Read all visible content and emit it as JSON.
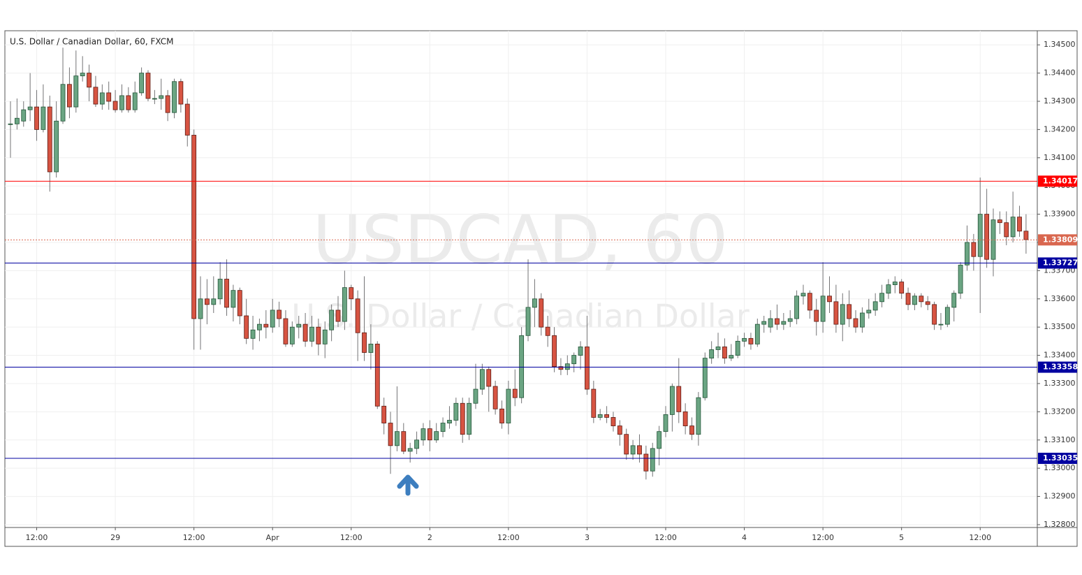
{
  "chart_data": {
    "type": "candlestick",
    "title": "U.S. Dollar / Canadian Dollar, 60, FXCM",
    "watermark": "USDCAD, 60",
    "watermark_subtitle": "U.S. Dollar / Canadian Dollar",
    "categories": [
      null,
      null,
      null,
      null,
      "12:00",
      null,
      null,
      null,
      null,
      null,
      null,
      null,
      null,
      null,
      null,
      null,
      "29",
      null,
      null,
      null,
      null,
      null,
      null,
      null,
      null,
      null,
      null,
      null,
      "12:00",
      null,
      null,
      null,
      null,
      null,
      null,
      null,
      null,
      null,
      null,
      null,
      "Apr",
      null,
      null,
      null,
      null,
      null,
      null,
      null,
      null,
      null,
      null,
      null,
      "12:00",
      null,
      null,
      null,
      null,
      null,
      null,
      null,
      null,
      null,
      null,
      null,
      "2",
      null,
      null,
      null,
      null,
      null,
      null,
      null,
      null,
      null,
      null,
      null,
      "12:00",
      null,
      null,
      null,
      null,
      null,
      null,
      null,
      null,
      null,
      null,
      null,
      "3",
      null,
      null,
      null,
      null,
      null,
      null,
      null,
      null,
      null,
      null,
      null,
      "12:00",
      null,
      null,
      null,
      null,
      null,
      null,
      null,
      null,
      null,
      null,
      null,
      "4",
      null,
      null,
      null,
      null,
      null,
      null,
      null,
      null,
      null,
      null,
      null,
      "12:00",
      null,
      null,
      null,
      null,
      null,
      null,
      null,
      null,
      null,
      null,
      null,
      "5",
      null,
      null,
      null,
      null,
      null,
      null,
      null,
      null,
      null,
      null,
      null,
      "12:00",
      null,
      null,
      null,
      null,
      null,
      null,
      null
    ],
    "open": [
      1.3422,
      1.3422,
      1.3423,
      1.3427,
      1.3428,
      1.342,
      1.3428,
      1.3405,
      1.3423,
      1.3436,
      1.3428,
      1.3439,
      1.344,
      1.3435,
      1.3429,
      1.3433,
      1.343,
      1.3427,
      1.3432,
      1.3427,
      1.3433,
      1.344,
      1.3431,
      1.3431,
      1.3432,
      1.3426,
      1.3437,
      1.3429,
      1.3418,
      1.3353,
      1.336,
      1.3358,
      1.336,
      1.3367,
      1.3357,
      1.3363,
      1.3354,
      1.3346,
      1.3349,
      1.3351,
      1.335,
      1.3356,
      1.3353,
      1.3344,
      1.335,
      1.3351,
      1.3345,
      1.335,
      1.3344,
      1.3349,
      1.3356,
      1.3352,
      1.3364,
      1.336,
      1.3348,
      1.3341,
      1.3344,
      1.3322,
      1.3316,
      1.3308,
      1.3313,
      1.3306,
      1.3307,
      1.331,
      1.3314,
      1.331,
      1.3313,
      1.3316,
      1.3317,
      1.3323,
      1.3312,
      1.3323,
      1.3328,
      1.3335,
      1.3329,
      1.3321,
      1.3316,
      1.3328,
      1.3325,
      1.3347,
      1.3357,
      1.336,
      1.335,
      1.3347,
      1.3336,
      1.3335,
      1.3337,
      1.334,
      1.3343,
      1.3328,
      1.3318,
      1.3319,
      1.3318,
      1.3315,
      1.3312,
      1.3305,
      1.3308,
      1.3305,
      1.3299,
      1.3307,
      1.3313,
      1.3319,
      1.3329,
      1.332,
      1.3315,
      1.3312,
      1.3325,
      1.3339,
      1.3342,
      1.3343,
      1.3339,
      1.334,
      1.3345,
      1.3346,
      1.3344,
      1.3351,
      1.335,
      1.3353,
      1.3351,
      1.3352,
      1.3353,
      1.3361,
      1.3362,
      1.3356,
      1.3352,
      1.3361,
      1.3359,
      1.3351,
      1.3358,
      1.3353,
      1.335,
      1.3355,
      1.3356,
      1.3359,
      1.3362,
      1.3365,
      1.3366,
      1.3362,
      1.3358,
      1.3361,
      1.3359,
      1.3358,
      1.3351,
      1.3351,
      1.3357,
      1.3362,
      1.3372,
      1.338,
      1.3375,
      1.339,
      1.3374,
      1.3388,
      1.3387,
      1.3382,
      1.3389,
      1.3384
    ],
    "high": [
      1.343,
      1.3431,
      1.343,
      1.344,
      1.3434,
      1.3436,
      1.3432,
      1.343,
      1.3449,
      1.3442,
      1.3448,
      1.3446,
      1.3443,
      1.3439,
      1.3436,
      1.3437,
      1.3434,
      1.3436,
      1.3435,
      1.3437,
      1.3442,
      1.3441,
      1.3434,
      1.3438,
      1.3434,
      1.3438,
      1.3438,
      1.3431,
      1.342,
      1.3368,
      1.3367,
      1.3368,
      1.3373,
      1.3374,
      1.3365,
      1.3364,
      1.336,
      1.3354,
      1.3353,
      1.3356,
      1.336,
      1.3359,
      1.3356,
      1.3352,
      1.3354,
      1.3355,
      1.3354,
      1.3353,
      1.3352,
      1.3358,
      1.3361,
      1.337,
      1.3365,
      1.3363,
      1.3368,
      1.3351,
      1.3345,
      1.3325,
      1.332,
      1.3329,
      1.3316,
      1.3309,
      1.3313,
      1.3316,
      1.3317,
      1.3316,
      1.3318,
      1.3322,
      1.3325,
      1.3325,
      1.3325,
      1.3337,
      1.3337,
      1.3336,
      1.3331,
      1.3324,
      1.3331,
      1.3335,
      1.335,
      1.3374,
      1.3367,
      1.3362,
      1.3354,
      1.335,
      1.3339,
      1.334,
      1.3341,
      1.3345,
      1.3354,
      1.3331,
      1.3321,
      1.3322,
      1.332,
      1.3317,
      1.3314,
      1.331,
      1.3312,
      1.3308,
      1.3309,
      1.3315,
      1.3322,
      1.333,
      1.3339,
      1.3323,
      1.3318,
      1.3327,
      1.3341,
      1.3345,
      1.3348,
      1.3346,
      1.3344,
      1.3347,
      1.3348,
      1.3348,
      1.3353,
      1.3354,
      1.3356,
      1.3358,
      1.3355,
      1.3356,
      1.3363,
      1.3365,
      1.3363,
      1.336,
      1.3373,
      1.3368,
      1.3365,
      1.3362,
      1.3363,
      1.3356,
      1.3357,
      1.336,
      1.3362,
      1.3365,
      1.3367,
      1.3368,
      1.3367,
      1.3364,
      1.3362,
      1.3362,
      1.3361,
      1.3359,
      1.3355,
      1.3358,
      1.3363,
      1.3373,
      1.3386,
      1.3383,
      1.3403,
      1.3399,
      1.3392,
      1.3391,
      1.3391,
      1.3398,
      1.3393,
      1.339
    ],
    "low": [
      1.341,
      1.342,
      1.3421,
      1.3423,
      1.3416,
      1.3419,
      1.3398,
      1.3403,
      1.3422,
      1.3424,
      1.3426,
      1.3437,
      1.343,
      1.3428,
      1.3427,
      1.3427,
      1.3426,
      1.3426,
      1.3426,
      1.3426,
      1.3432,
      1.343,
      1.3429,
      1.3427,
      1.3423,
      1.3424,
      1.3426,
      1.3414,
      1.3342,
      1.3342,
      1.3351,
      1.3355,
      1.3358,
      1.3354,
      1.3352,
      1.3351,
      1.3344,
      1.3342,
      1.3345,
      1.3346,
      1.3348,
      1.335,
      1.3343,
      1.3343,
      1.3346,
      1.3343,
      1.3343,
      1.334,
      1.3339,
      1.3345,
      1.335,
      1.3349,
      1.3356,
      1.3338,
      1.3338,
      1.3335,
      1.3321,
      1.3312,
      1.3298,
      1.3306,
      1.3305,
      1.3302,
      1.3305,
      1.3308,
      1.3306,
      1.3309,
      1.3311,
      1.3314,
      1.3315,
      1.3309,
      1.331,
      1.3321,
      1.3326,
      1.332,
      1.3319,
      1.3314,
      1.3312,
      1.3322,
      1.3323,
      1.3345,
      1.335,
      1.3347,
      1.3343,
      1.3334,
      1.3333,
      1.3333,
      1.3334,
      1.3335,
      1.3326,
      1.3316,
      1.3317,
      1.3316,
      1.3313,
      1.3308,
      1.3303,
      1.3303,
      1.3302,
      1.3296,
      1.3297,
      1.3301,
      1.3311,
      1.3313,
      1.3316,
      1.3312,
      1.331,
      1.3308,
      1.3324,
      1.3337,
      1.3339,
      1.3337,
      1.3338,
      1.3339,
      1.3343,
      1.3342,
      1.3343,
      1.3348,
      1.3348,
      1.3349,
      1.3349,
      1.335,
      1.3351,
      1.3358,
      1.3353,
      1.3347,
      1.3348,
      1.3355,
      1.3348,
      1.3345,
      1.335,
      1.3348,
      1.3348,
      1.3353,
      1.3354,
      1.3357,
      1.336,
      1.3362,
      1.336,
      1.3356,
      1.3356,
      1.3357,
      1.3356,
      1.3349,
      1.3349,
      1.335,
      1.3352,
      1.336,
      1.337,
      1.337,
      1.3355,
      1.3371,
      1.3368,
      1.3383,
      1.3379,
      1.338,
      1.3382,
      1.3376
    ],
    "close": [
      1.3422,
      1.3424,
      1.3427,
      1.3428,
      1.342,
      1.3428,
      1.3405,
      1.3423,
      1.3436,
      1.3428,
      1.3439,
      1.344,
      1.3435,
      1.3429,
      1.3433,
      1.343,
      1.3427,
      1.3432,
      1.3427,
      1.3433,
      1.344,
      1.3431,
      1.3431,
      1.3432,
      1.3426,
      1.3437,
      1.3429,
      1.3418,
      1.3353,
      1.336,
      1.3358,
      1.336,
      1.3367,
      1.3357,
      1.3363,
      1.3354,
      1.3346,
      1.3349,
      1.3351,
      1.335,
      1.3356,
      1.3353,
      1.3344,
      1.335,
      1.3351,
      1.3345,
      1.335,
      1.3344,
      1.3349,
      1.3356,
      1.3352,
      1.3364,
      1.336,
      1.3348,
      1.3341,
      1.3344,
      1.3322,
      1.3316,
      1.3308,
      1.3313,
      1.3306,
      1.3307,
      1.331,
      1.3314,
      1.331,
      1.3313,
      1.3316,
      1.3317,
      1.3323,
      1.3312,
      1.3323,
      1.3328,
      1.3335,
      1.3329,
      1.3321,
      1.3316,
      1.3328,
      1.3325,
      1.3347,
      1.3357,
      1.336,
      1.335,
      1.3347,
      1.3336,
      1.3335,
      1.3337,
      1.334,
      1.3343,
      1.3328,
      1.3318,
      1.3319,
      1.3318,
      1.3315,
      1.3312,
      1.3305,
      1.3308,
      1.3305,
      1.3299,
      1.3307,
      1.3313,
      1.3319,
      1.3329,
      1.332,
      1.3315,
      1.3312,
      1.3325,
      1.3339,
      1.3342,
      1.3343,
      1.3339,
      1.334,
      1.3345,
      1.3346,
      1.3344,
      1.3351,
      1.3352,
      1.3353,
      1.3351,
      1.3352,
      1.3353,
      1.3361,
      1.3362,
      1.3356,
      1.3352,
      1.3361,
      1.3359,
      1.3351,
      1.3358,
      1.3353,
      1.335,
      1.3355,
      1.3356,
      1.3359,
      1.3362,
      1.3365,
      1.3366,
      1.3362,
      1.3358,
      1.3361,
      1.3359,
      1.3358,
      1.3351,
      1.3351,
      1.3357,
      1.3362,
      1.3372,
      1.338,
      1.3375,
      1.339,
      1.3374,
      1.3388,
      1.3387,
      1.3382,
      1.3389,
      1.3384,
      1.3381
    ],
    "up_color": "#6ba583",
    "down_color": "#d75442",
    "ylim": [
      1.3279,
      1.3455
    ],
    "yticks": [
      {
        "value": 1.328,
        "label": "1.32800"
      },
      {
        "value": 1.329,
        "label": "1.32900"
      },
      {
        "value": 1.33,
        "label": "1.33000"
      },
      {
        "value": 1.331,
        "label": "1.33100"
      },
      {
        "value": 1.332,
        "label": "1.33200"
      },
      {
        "value": 1.333,
        "label": "1.33300"
      },
      {
        "value": 1.334,
        "label": "1.33400"
      },
      {
        "value": 1.335,
        "label": "1.33500"
      },
      {
        "value": 1.336,
        "label": "1.33600"
      },
      {
        "value": 1.337,
        "label": "1.33700"
      },
      {
        "value": 1.338,
        "label": "1.33800"
      },
      {
        "value": 1.339,
        "label": "1.33900"
      },
      {
        "value": 1.34,
        "label": "1.34000"
      },
      {
        "value": 1.341,
        "label": "1.34100"
      },
      {
        "value": 1.342,
        "label": "1.34200"
      },
      {
        "value": 1.343,
        "label": "1.34300"
      },
      {
        "value": 1.344,
        "label": "1.34400"
      },
      {
        "value": 1.345,
        "label": "1.34500"
      }
    ],
    "levels": [
      {
        "value": 1.34017,
        "color": "#ff0000"
      },
      {
        "value": 1.33727,
        "color": "#0000a0"
      },
      {
        "value": 1.33358,
        "color": "#0000a0"
      },
      {
        "value": 1.33035,
        "color": "#0000a0"
      }
    ],
    "last_price": {
      "value": 1.33809,
      "color": "#d9674f"
    },
    "grid": true
  }
}
